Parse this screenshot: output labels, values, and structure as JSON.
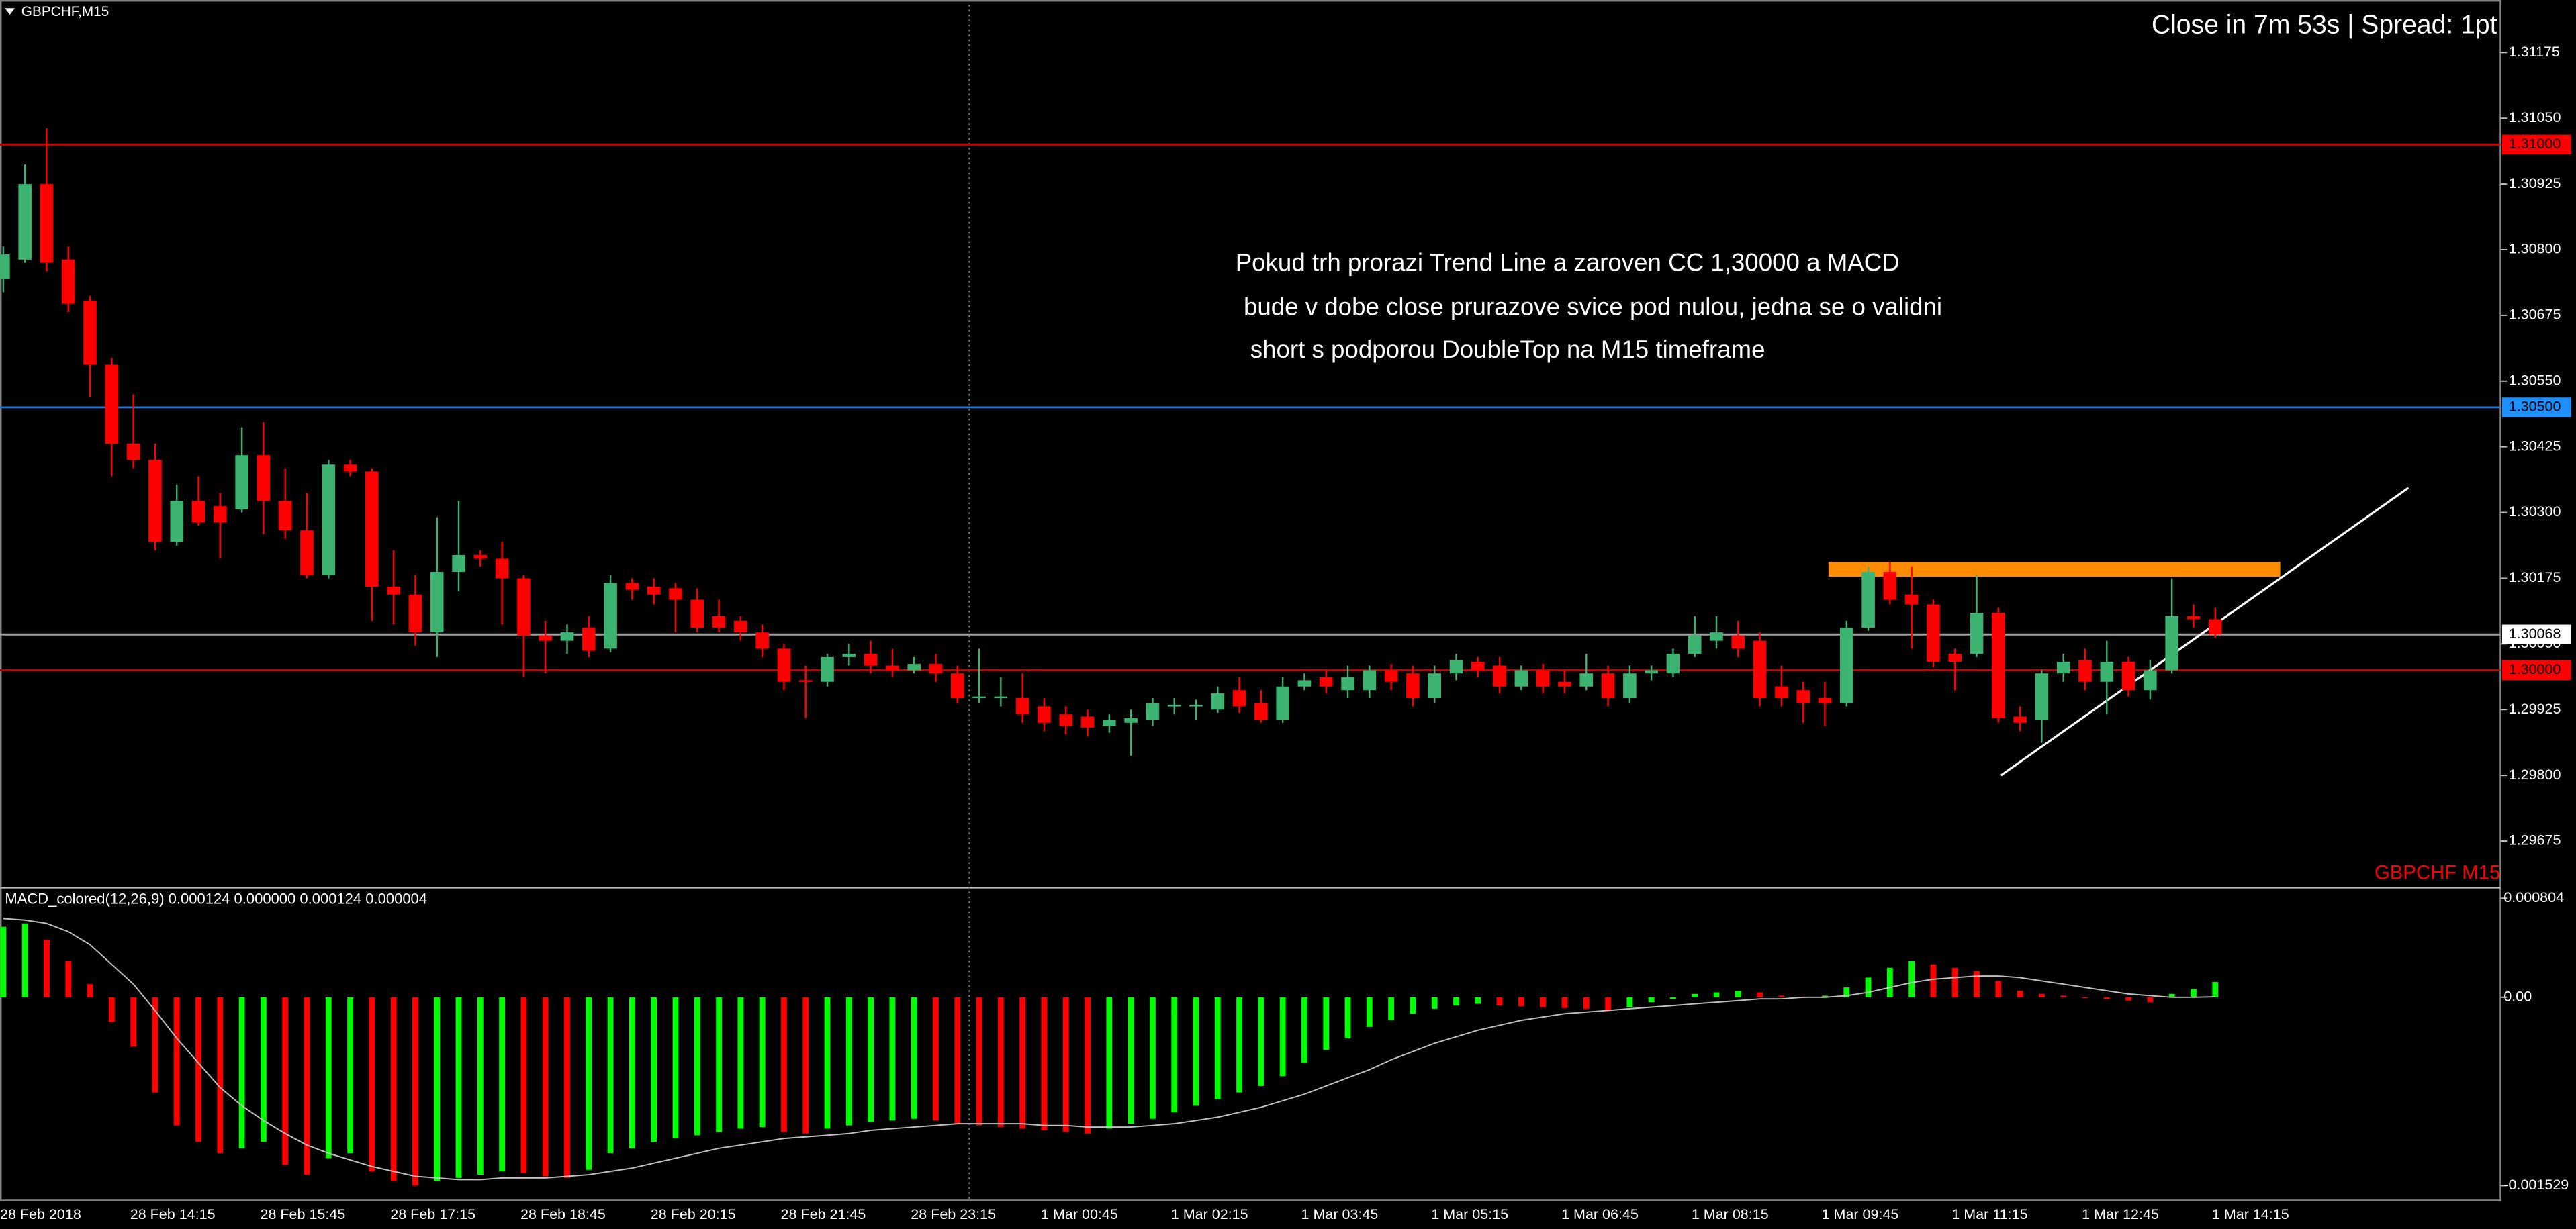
{
  "chart_data": [
    {
      "type": "candlestick",
      "symbol_label": "GBPCHF,M15",
      "status": "Close in 7m 53s | Spread: 1pt",
      "watermark": "GBPCHF M15",
      "annotation": [
        "Pokud trh prorazi Trend Line a zaroven CC 1,30000 a MACD",
        "bude v dobe close prurazove svice pod nulou, jedna se o validni",
        "short s podporou DoubleTop na M15 timeframe"
      ],
      "categories": [
        "28 Feb 2018",
        null,
        null,
        null,
        null,
        null,
        "28 Feb 14:15",
        null,
        null,
        null,
        null,
        null,
        "28 Feb 15:45",
        null,
        null,
        null,
        null,
        null,
        "28 Feb 17:15",
        null,
        null,
        null,
        null,
        null,
        "28 Feb 18:45",
        null,
        null,
        null,
        null,
        null,
        "28 Feb 20:15",
        null,
        null,
        null,
        null,
        null,
        "28 Feb 21:45",
        null,
        null,
        null,
        null,
        null,
        "28 Feb 23:15",
        null,
        null,
        null,
        null,
        null,
        "1 Mar 00:45",
        null,
        null,
        null,
        null,
        null,
        "1 Mar 02:15",
        null,
        null,
        null,
        null,
        null,
        "1 Mar 03:45",
        null,
        null,
        null,
        null,
        null,
        "1 Mar 05:15",
        null,
        null,
        null,
        null,
        null,
        "1 Mar 06:45",
        null,
        null,
        null,
        null,
        null,
        "1 Mar 08:15",
        null,
        null,
        null,
        null,
        null,
        "1 Mar 09:45",
        null,
        null,
        null,
        null,
        null,
        "1 Mar 11:15",
        null,
        null,
        null,
        null,
        null,
        "1 Mar 12:45",
        null,
        null,
        null,
        null,
        null,
        "1 Mar 14:15"
      ],
      "open": [
        1.30744,
        1.30781,
        1.30925,
        1.30781,
        1.30703,
        1.30581,
        1.30431,
        1.304,
        1.30244,
        1.30322,
        1.30312,
        1.30306,
        1.30409,
        1.30322,
        1.30266,
        1.30181,
        1.30391,
        1.30378,
        1.30159,
        1.30144,
        1.30072,
        1.30187,
        1.30219,
        1.30212,
        1.30175,
        1.30066,
        1.30056,
        1.30081,
        1.30041,
        1.30166,
        1.30159,
        1.30156,
        1.30134,
        1.30103,
        1.30094,
        1.30072,
        1.30041,
        1.29981,
        1.29978,
        1.30025,
        1.30031,
        1.30009,
        1.3,
        1.30012,
        1.29994,
        1.29947,
        1.29947,
        1.29947,
        1.29931,
        1.29916,
        1.29912,
        1.29894,
        1.299,
        1.29906,
        1.29931,
        1.29931,
        1.29925,
        1.29962,
        1.29937,
        1.29906,
        1.29969,
        1.29987,
        1.29962,
        1.29962,
        1.3,
        1.29994,
        1.29947,
        1.29994,
        1.30016,
        1.30009,
        1.29969,
        1.3,
        1.29978,
        1.29969,
        1.29994,
        1.29947,
        1.29994,
        1.29994,
        1.30031,
        1.30056,
        1.30066,
        1.30056,
        1.29969,
        1.29962,
        1.29947,
        1.29937,
        1.30081,
        1.30187,
        1.30144,
        1.30125,
        1.30031,
        1.30031,
        1.30109,
        1.29912,
        1.29906,
        1.29994,
        1.30019,
        1.29978,
        1.30016,
        1.29962,
        1.3,
        1.30103,
        1.30097
      ],
      "high": [
        1.30806,
        1.30962,
        1.31031,
        1.30806,
        1.30712,
        1.30594,
        1.30525,
        1.30431,
        1.30353,
        1.30369,
        1.30337,
        1.30462,
        1.30472,
        1.30384,
        1.30337,
        1.304,
        1.304,
        1.30384,
        1.30228,
        1.30181,
        1.30291,
        1.30322,
        1.30228,
        1.30244,
        1.30181,
        1.30094,
        1.30087,
        1.30103,
        1.30181,
        1.30175,
        1.30175,
        1.30166,
        1.30156,
        1.30134,
        1.30103,
        1.30087,
        1.3005,
        1.30009,
        1.30031,
        1.3005,
        1.30056,
        1.30041,
        1.30025,
        1.30031,
        1.30009,
        1.30041,
        1.29987,
        1.29994,
        1.29947,
        1.29931,
        1.29925,
        1.29916,
        1.29925,
        1.29947,
        1.29947,
        1.29944,
        1.29969,
        1.29987,
        1.29962,
        1.29987,
        1.29994,
        1.3,
        1.30009,
        1.30009,
        1.30012,
        1.30009,
        1.30009,
        1.30031,
        1.30025,
        1.30025,
        1.30009,
        1.30012,
        1.3,
        1.30031,
        1.30009,
        1.30009,
        1.30009,
        1.30041,
        1.30103,
        1.30103,
        1.30094,
        1.30072,
        1.30009,
        1.29978,
        1.29978,
        1.30094,
        1.30197,
        1.30206,
        1.30197,
        1.30134,
        1.30041,
        1.30181,
        1.30119,
        1.29931,
        1.3,
        1.30031,
        1.30041,
        1.30056,
        1.30025,
        1.30019,
        1.30175,
        1.30125,
        1.30119
      ],
      "low": [
        1.30719,
        1.30775,
        1.30759,
        1.30681,
        1.30519,
        1.30369,
        1.30384,
        1.30228,
        1.30237,
        1.30275,
        1.30212,
        1.303,
        1.30259,
        1.3025,
        1.30175,
        1.30175,
        1.30369,
        1.30094,
        1.30087,
        1.30047,
        1.30025,
        1.3015,
        1.30197,
        1.30087,
        1.29987,
        1.29994,
        1.30031,
        1.30025,
        1.30034,
        1.30134,
        1.30125,
        1.30072,
        1.30072,
        1.30072,
        1.30056,
        1.30025,
        1.29962,
        1.29909,
        1.29969,
        1.30009,
        1.29994,
        1.29987,
        1.29994,
        1.29978,
        1.29937,
        1.29937,
        1.29931,
        1.299,
        1.29884,
        1.29878,
        1.29875,
        1.29881,
        1.29837,
        1.29894,
        1.29916,
        1.29906,
        1.29919,
        1.29919,
        1.299,
        1.299,
        1.29962,
        1.29956,
        1.29947,
        1.29947,
        1.29962,
        1.29931,
        1.29937,
        1.29981,
        1.29987,
        1.29956,
        1.29962,
        1.29956,
        1.29956,
        1.29962,
        1.29931,
        1.29937,
        1.29981,
        1.29987,
        1.30025,
        1.30041,
        1.30025,
        1.29931,
        1.29931,
        1.299,
        1.29894,
        1.29931,
        1.30075,
        1.30125,
        1.30041,
        1.30006,
        1.29962,
        1.30025,
        1.299,
        1.29884,
        1.29862,
        1.29978,
        1.29962,
        1.29916,
        1.2995,
        1.29944,
        1.29994,
        1.30081,
        1.30062
      ],
      "close": [
        1.30791,
        1.30925,
        1.30775,
        1.30697,
        1.30581,
        1.30431,
        1.304,
        1.30244,
        1.30322,
        1.30281,
        1.30281,
        1.30409,
        1.30322,
        1.30266,
        1.30181,
        1.30391,
        1.30378,
        1.30159,
        1.30144,
        1.30072,
        1.30187,
        1.30219,
        1.30212,
        1.30175,
        1.30066,
        1.30056,
        1.30072,
        1.30037,
        1.30166,
        1.30153,
        1.30144,
        1.30134,
        1.30081,
        1.30081,
        1.30072,
        1.30041,
        1.29978,
        1.29978,
        1.30025,
        1.30031,
        1.30009,
        1.3,
        1.30012,
        1.29994,
        1.29947,
        1.2995,
        1.2995,
        1.29916,
        1.299,
        1.29894,
        1.29891,
        1.29906,
        1.29909,
        1.29937,
        1.29934,
        1.29934,
        1.29956,
        1.29931,
        1.29906,
        1.29969,
        1.29981,
        1.29969,
        1.29987,
        1.3,
        1.29978,
        1.29947,
        1.29994,
        1.30019,
        1.3,
        1.29969,
        1.3,
        1.29969,
        1.29969,
        1.29994,
        1.29947,
        1.29994,
        1.3,
        1.30031,
        1.30066,
        1.30072,
        1.30041,
        1.29947,
        1.29947,
        1.29937,
        1.29937,
        1.30081,
        1.30187,
        1.30134,
        1.30125,
        1.30016,
        1.30016,
        1.30109,
        1.29909,
        1.299,
        1.29994,
        1.30016,
        1.29978,
        1.30016,
        1.29962,
        1.3,
        1.30103,
        1.30097,
        1.30068
      ],
      "up_color": "#3cb371",
      "down_color": "#ff0000",
      "ylim": [
        1.29588,
        1.31275
      ],
      "yticks": [
        1.31175,
        {
          "value": 1.3105,
          "label": "1.31050"
        },
        1.30925,
        {
          "value": 1.308,
          "label": "1.30800"
        },
        1.30675,
        {
          "value": 1.3055,
          "label": "1.30550"
        },
        1.30425,
        {
          "value": 1.303,
          "label": "1.30300"
        },
        1.30175,
        {
          "value": 1.3005,
          "label": "1.30050"
        },
        1.29925,
        {
          "value": 1.298,
          "label": "1.29800"
        },
        1.29675
      ],
      "levels": [
        {
          "value": 1.31,
          "label": "1.31000",
          "color": "#c80000",
          "label_bg": "#ff0000",
          "label_color": "#000000"
        },
        {
          "value": 1.305,
          "label": "1.30500",
          "color": "#1e78dc",
          "label_bg": "#1e90ff",
          "label_color": "#000000"
        },
        {
          "value": 1.3,
          "label": "1.30000",
          "color": "#c80000",
          "label_bg": "#ff0000",
          "label_color": "#000000"
        },
        {
          "value": 1.30068,
          "label": "1.30068",
          "color": "#a0a0a0",
          "label_bg": "#ffffff",
          "label_color": "#000000"
        }
      ],
      "resistance_zone": {
        "top": 1.30206,
        "bottom": 1.30178,
        "color": "#ff8c00"
      },
      "trend_line": {
        "start": 1.298,
        "end": 1.30347,
        "color": "#ffffff"
      }
    },
    {
      "type": "macd_histogram",
      "title": "MACD_colored(12,26,9) 0.000124 0.000000 0.000124 0.000004",
      "values": [
        0.000573,
        0.0006,
        0.000467,
        0.000293,
        0.000107,
        -0.0002,
        -0.0004,
        -0.000773,
        -0.00104,
        -0.001173,
        -0.001266,
        -0.001226,
        -0.001173,
        -0.00136,
        -0.00144,
        -0.001306,
        -0.001266,
        -0.001413,
        -0.001493,
        -0.001529,
        -0.001493,
        -0.001466,
        -0.00144,
        -0.001413,
        -0.001426,
        -0.001453,
        -0.001466,
        -0.0014,
        -0.001266,
        -0.001226,
        -0.001173,
        -0.001146,
        -0.00112,
        -0.001093,
        -0.001066,
        -0.001053,
        -0.001093,
        -0.001106,
        -0.001066,
        -0.00104,
        -0.001013,
        -0.001,
        -0.000986,
        -0.001,
        -0.001026,
        -0.00104,
        -0.001053,
        -0.001066,
        -0.00108,
        -0.001093,
        -0.001106,
        -0.001066,
        -0.001026,
        -0.000986,
        -0.000933,
        -0.00088,
        -0.000827,
        -0.000773,
        -0.00072,
        -0.00064,
        -0.000533,
        -0.000427,
        -0.000333,
        -0.00024,
        -0.000187,
        -0.000133,
        -9.3e-05,
        -6.7e-05,
        -5.3e-05,
        -6.7e-05,
        -7.3e-05,
        -8e-05,
        -8.7e-05,
        -9.3e-05,
        -0.000107,
        -8e-05,
        -4e-05,
        -1.3e-05,
        2.7e-05,
        4e-05,
        5.3e-05,
        4e-05,
        1.3e-05,
        0,
        1.3e-05,
        8e-05,
        0.00016,
        0.00024,
        0.000293,
        0.000267,
        0.00024,
        0.000213,
        0.000133,
        5.3e-05,
        2.7e-05,
        1.3e-05,
        0,
        -1.3e-05,
        -2.7e-05,
        -4e-05,
        2.7e-05,
        6.7e-05,
        0.000124
      ],
      "signal": [
        0.00064,
        0.000627,
        0.0006,
        0.000533,
        0.000427,
        0.000267,
        0.000107,
        -0.000107,
        -0.000333,
        -0.000533,
        -0.000733,
        -0.00088,
        -0.001,
        -0.001106,
        -0.0012,
        -0.001266,
        -0.00132,
        -0.001373,
        -0.001413,
        -0.001453,
        -0.001466,
        -0.00148,
        -0.00148,
        -0.001466,
        -0.001466,
        -0.001466,
        -0.001453,
        -0.00144,
        -0.001413,
        -0.001386,
        -0.001346,
        -0.001306,
        -0.001266,
        -0.001226,
        -0.0012,
        -0.001173,
        -0.001146,
        -0.001133,
        -0.00112,
        -0.001106,
        -0.00108,
        -0.001066,
        -0.001053,
        -0.00104,
        -0.001026,
        -0.001026,
        -0.001026,
        -0.001026,
        -0.00104,
        -0.00104,
        -0.001053,
        -0.001053,
        -0.001053,
        -0.00104,
        -0.001026,
        -0.001,
        -0.000973,
        -0.000933,
        -0.000893,
        -0.00084,
        -0.000787,
        -0.00072,
        -0.000653,
        -0.000587,
        -0.000507,
        -0.00044,
        -0.000373,
        -0.00032,
        -0.000267,
        -0.000227,
        -0.000187,
        -0.00016,
        -0.000133,
        -0.00012,
        -0.000107,
        -9.3e-05,
        -8e-05,
        -6.7e-05,
        -5.3e-05,
        -4e-05,
        -2.7e-05,
        -1.3e-05,
        -1.3e-05,
        0,
        0,
        1.3e-05,
        4e-05,
        8e-05,
        0.00012,
        0.000147,
        0.00016,
        0.000173,
        0.000173,
        0.00016,
        0.000133,
        0.000107,
        8e-05,
        5.3e-05,
        2.7e-05,
        1.3e-05,
        0,
        0,
        4e-06
      ],
      "up_color": "#00ff00",
      "down_color": "#ff0000",
      "signal_color": "#c0c0c0",
      "ylim": [
        -0.001529,
        0.000804
      ],
      "yticks": [
        0.000804,
        {
          "value": 0,
          "label": "0.00"
        },
        -0.001529
      ]
    }
  ]
}
